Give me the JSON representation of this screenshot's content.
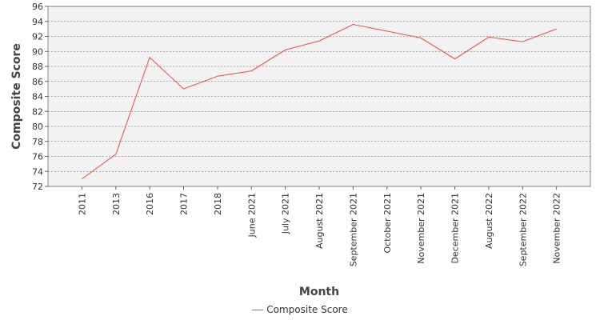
{
  "chart_data": {
    "type": "line",
    "categories": [
      "2011",
      "2013",
      "2016",
      "2017",
      "2018",
      "June 2021",
      "July 2021",
      "August 2021",
      "September 2021",
      "October 2021",
      "November 2021",
      "December 2021",
      "August 2022",
      "September 2022",
      "November 2022"
    ],
    "series": [
      {
        "name": "Composite Score",
        "values": [
          73.0,
          76.3,
          89.2,
          85.0,
          86.7,
          87.4,
          90.2,
          91.4,
          93.6,
          92.7,
          91.8,
          89.0,
          91.9,
          91.3,
          93.0
        ],
        "color": "#ff4444"
      }
    ],
    "xlabel": "Month",
    "ylabel": "Composite Score",
    "ylim": [
      72,
      96
    ],
    "yticks": [
      72,
      74,
      76,
      78,
      80,
      82,
      84,
      86,
      88,
      90,
      92,
      94,
      96
    ],
    "grid": true,
    "legend": "bottom-center",
    "colors": {
      "plot_background": "#f2f2f2",
      "grid": "#666666",
      "line": "#ff4444"
    }
  }
}
